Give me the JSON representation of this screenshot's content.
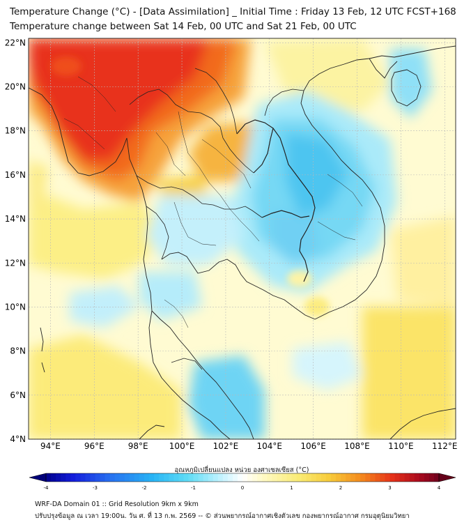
{
  "header": {
    "title_line1": "Temperature Change (°C) - [Data Assimilation] _ Initial Time : Friday 13 Feb, 12 UTC FCST+168",
    "title_line2": "Temperature change between Sat 14 Feb, 00 UTC and Sat 21 Feb, 00 UTC"
  },
  "map": {
    "lat_labels": [
      "22°N",
      "20°N",
      "18°N",
      "16°N",
      "14°N",
      "12°N",
      "10°N",
      "8°N",
      "6°N",
      "4°N"
    ],
    "lat_values": [
      22,
      20,
      18,
      16,
      14,
      12,
      10,
      8,
      6,
      4
    ],
    "lon_labels": [
      "94°E",
      "96°E",
      "98°E",
      "100°E",
      "102°E",
      "104°E",
      "106°E",
      "108°E",
      "110°E",
      "112°E"
    ],
    "lon_values": [
      94,
      96,
      98,
      100,
      102,
      104,
      106,
      108,
      110,
      112
    ],
    "lon_range": [
      93,
      112.5
    ],
    "lat_range": [
      4,
      22.2
    ]
  },
  "colorbar": {
    "label": "อุณหภูมิเปลี่ยนแปลง หน่วย องศาเซลเซียส (°C)",
    "ticks": [
      "-4",
      "-3",
      "-2",
      "-1",
      "0",
      "1",
      "2",
      "3",
      "4"
    ],
    "tick_values": [
      -4,
      -3,
      -2,
      -1,
      0,
      1,
      2,
      3,
      4
    ],
    "range": [
      -4,
      4
    ]
  },
  "footer": {
    "line1": "WRF-DA Domain 01 :: Grid Resolution 9km x 9km",
    "line2": "ปรับปรุงข้อมูล ณ เวลา 19:00น. วัน ศ. ที่ 13 ก.พ. 2569 -- © ส่วนพยากรณ์อากาศเชิงตัวเลข กองพยากรณ์อากาศ กรมอุตุนิยมวิทยา"
  },
  "colors": {
    "hot_red": "#e8261a",
    "orange": "#f57e1c",
    "yellow": "#f7e14a",
    "light_yellow": "#fff9c8",
    "light_blue": "#ccf4ff",
    "cyan": "#64d9f5",
    "blue": "#3bb5ef",
    "coast": "#222222"
  }
}
